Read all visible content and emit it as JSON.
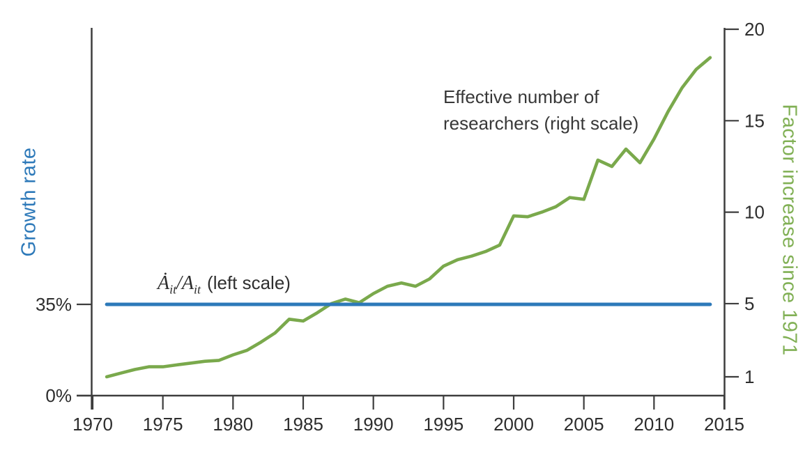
{
  "figure": {
    "background": "#ffffff",
    "text_color": "#2d2d2d",
    "axis_color": "#3d3d3d"
  },
  "chart_data": {
    "type": "line",
    "title": "",
    "grid": false,
    "legend_position": "none",
    "x_axis": {
      "label": "",
      "range": [
        1970,
        2015
      ],
      "ticks": [
        1970,
        1975,
        1980,
        1985,
        1990,
        1995,
        2000,
        2005,
        2010,
        2015
      ]
    },
    "left_axis": {
      "title": "Growth rate",
      "color": "#2d79b9",
      "unit": "%",
      "range": [
        0,
        35
      ],
      "ticks": [
        {
          "value": 0,
          "label": "0%"
        },
        {
          "value": 35,
          "label": "35%"
        }
      ]
    },
    "right_axis": {
      "title": "Factor increase since 1971",
      "color": "#81b055",
      "range": [
        1,
        20
      ],
      "ticks": [
        {
          "value": 1,
          "label": "1"
        },
        {
          "value": 5,
          "label": "5"
        },
        {
          "value": 10,
          "label": "10"
        },
        {
          "value": 15,
          "label": "15"
        },
        {
          "value": 20,
          "label": "20"
        }
      ]
    },
    "series": [
      {
        "name": "Growth rate (left scale)",
        "axis": "left",
        "color": "#2d79b9",
        "style": "constant-line",
        "constant_value": 35,
        "x_start": 1971,
        "x_end": 2014
      },
      {
        "name": "Effective number of researchers (right scale)",
        "axis": "right",
        "color": "#7aa94c",
        "x": [
          1971,
          1972,
          1973,
          1974,
          1975,
          1976,
          1977,
          1978,
          1979,
          1980,
          1981,
          1982,
          1983,
          1984,
          1985,
          1986,
          1987,
          1988,
          1989,
          1990,
          1991,
          1992,
          1993,
          1994,
          1995,
          1996,
          1997,
          1998,
          1999,
          2000,
          2001,
          2002,
          2003,
          2004,
          2005,
          2006,
          2007,
          2008,
          2009,
          2010,
          2011,
          2012,
          2013,
          2014
        ],
        "values": [
          1.0,
          1.2,
          1.4,
          1.55,
          1.55,
          1.65,
          1.75,
          1.85,
          1.9,
          2.2,
          2.45,
          2.9,
          3.4,
          4.15,
          4.05,
          4.5,
          5.0,
          5.25,
          5.05,
          5.55,
          5.95,
          6.13,
          5.95,
          6.35,
          7.05,
          7.4,
          7.6,
          7.85,
          8.2,
          9.8,
          9.75,
          10.0,
          10.3,
          10.8,
          10.7,
          12.85,
          12.5,
          13.45,
          12.7,
          14.0,
          15.5,
          16.8,
          17.8,
          18.45
        ]
      }
    ],
    "annotations": {
      "researchers_label": "Effective number of\nresearchers (right scale)",
      "growth_math": {
        "numerator": "Ȧ",
        "numerator_sub": "it",
        "slash": "/",
        "denominator": "A",
        "denominator_sub": "it",
        "suffix": "(left scale)"
      }
    }
  }
}
